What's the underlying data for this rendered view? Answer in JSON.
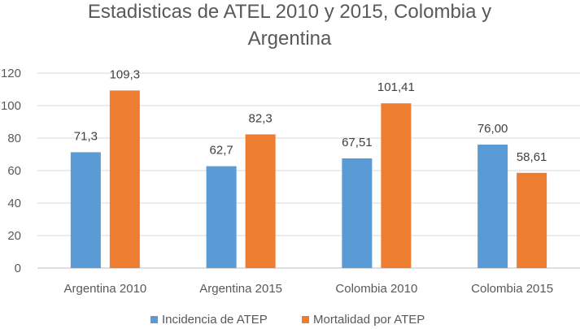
{
  "chart_data": {
    "type": "bar",
    "title_lines": [
      "Estadisticas de ATEL 2010 y 2015, Colombia y",
      "Argentina"
    ],
    "categories": [
      "Argentina 2010",
      "Argentina 2015",
      "Colombia 2010",
      "Colombia 2015"
    ],
    "series": [
      {
        "name": "Incidencia de ATEP",
        "color": "#5B9BD5",
        "values": [
          71.3,
          62.7,
          67.51,
          76.0
        ],
        "labels": [
          "71,3",
          "62,7",
          "67,51",
          "76,00"
        ]
      },
      {
        "name": "Mortalidad por ATEP",
        "color": "#ED7D31",
        "values": [
          109.3,
          82.3,
          101.41,
          58.61
        ],
        "labels": [
          "109,3",
          "82,3",
          "101,41",
          "58,61"
        ]
      }
    ],
    "ylim": [
      0,
      120
    ],
    "yticks": [
      0,
      20,
      40,
      60,
      80,
      100,
      120
    ],
    "grid": true,
    "legend_position": "bottom"
  }
}
